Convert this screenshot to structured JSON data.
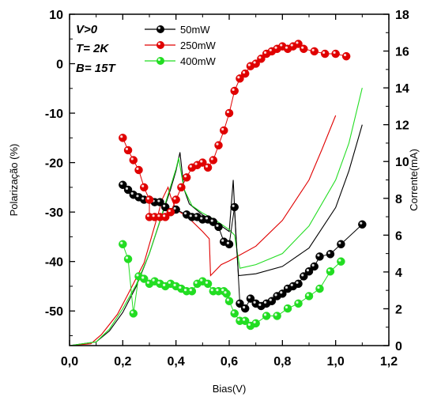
{
  "chart_data": {
    "type": "scatter",
    "xlabel": "Bias(V)",
    "ylabel_left": "Polarização (%)",
    "ylabel_right": "Corrente(mA)",
    "xlim": [
      0.0,
      1.2
    ],
    "ylim_left": [
      -57,
      10
    ],
    "ylim_right": [
      0,
      18
    ],
    "x_ticks": [
      "0,0",
      "0,2",
      "0,4",
      "0,6",
      "0,8",
      "1,0",
      "1,2"
    ],
    "y_left_ticks": [
      "10",
      "0",
      "-10",
      "-20",
      "-30",
      "-40",
      "-50"
    ],
    "y_right_ticks": [
      "0",
      "2",
      "4",
      "6",
      "8",
      "10",
      "12",
      "14",
      "16",
      "18"
    ],
    "y_left_tick_values": [
      10,
      0,
      -10,
      -20,
      -30,
      -40,
      -50
    ],
    "y_right_tick_values": [
      0,
      2,
      4,
      6,
      8,
      10,
      12,
      14,
      16,
      18
    ],
    "x_tick_values": [
      0,
      0.2,
      0.4,
      0.6,
      0.8,
      1.0,
      1.2
    ],
    "annotations": [
      "V>0",
      "T= 2K",
      "B= 15T"
    ],
    "legend_position": "top-center",
    "grid": false,
    "series": [
      {
        "name": "50mW",
        "color": "#000000",
        "polarization": [
          [
            0.2,
            -24.5
          ],
          [
            0.22,
            -25.5
          ],
          [
            0.24,
            -26.5
          ],
          [
            0.26,
            -27.0
          ],
          [
            0.28,
            -27.5
          ],
          [
            0.3,
            -27.5
          ],
          [
            0.32,
            -28.0
          ],
          [
            0.34,
            -28.0
          ],
          [
            0.36,
            -29.0
          ],
          [
            0.38,
            -30.0
          ],
          [
            0.4,
            -29.5
          ],
          [
            0.44,
            -30.5
          ],
          [
            0.46,
            -31.0
          ],
          [
            0.48,
            -31.0
          ],
          [
            0.5,
            -31.5
          ],
          [
            0.52,
            -31.5
          ],
          [
            0.54,
            -32.0
          ],
          [
            0.56,
            -33.0
          ],
          [
            0.58,
            -36.0
          ],
          [
            0.6,
            -36.5
          ],
          [
            0.62,
            -29.0
          ],
          [
            0.64,
            -48.5
          ],
          [
            0.66,
            -49.5
          ],
          [
            0.68,
            -47.5
          ],
          [
            0.7,
            -48.5
          ],
          [
            0.72,
            -49.0
          ],
          [
            0.74,
            -48.5
          ],
          [
            0.76,
            -48.0
          ],
          [
            0.78,
            -47.0
          ],
          [
            0.8,
            -46.5
          ],
          [
            0.82,
            -45.5
          ],
          [
            0.84,
            -45.0
          ],
          [
            0.86,
            -44.5
          ],
          [
            0.88,
            -43.0
          ],
          [
            0.9,
            -42.0
          ],
          [
            0.92,
            -41.0
          ],
          [
            0.94,
            -39.0
          ],
          [
            0.98,
            -38.5
          ],
          [
            1.02,
            -36.5
          ],
          [
            1.1,
            -32.5
          ]
        ],
        "current": [
          [
            0.0,
            0.0
          ],
          [
            0.1,
            0.2
          ],
          [
            0.15,
            0.8
          ],
          [
            0.2,
            1.8
          ],
          [
            0.25,
            3.2
          ],
          [
            0.3,
            5.0
          ],
          [
            0.35,
            7.2
          ],
          [
            0.38,
            8.5
          ],
          [
            0.4,
            9.5
          ],
          [
            0.415,
            10.5
          ],
          [
            0.43,
            8.5
          ],
          [
            0.45,
            7.7
          ],
          [
            0.5,
            7.1
          ],
          [
            0.55,
            6.7
          ],
          [
            0.58,
            6.4
          ],
          [
            0.6,
            6.2
          ],
          [
            0.615,
            9.0
          ],
          [
            0.625,
            6.0
          ],
          [
            0.635,
            3.8
          ],
          [
            0.7,
            3.9
          ],
          [
            0.8,
            4.3
          ],
          [
            0.9,
            5.3
          ],
          [
            1.0,
            7.5
          ],
          [
            1.05,
            9.5
          ],
          [
            1.1,
            12.0
          ]
        ]
      },
      {
        "name": "250mW",
        "color": "#e00000",
        "polarization": [
          [
            0.2,
            -15.0
          ],
          [
            0.22,
            -17.5
          ],
          [
            0.24,
            -19.5
          ],
          [
            0.26,
            -21.5
          ],
          [
            0.28,
            -25.0
          ],
          [
            0.3,
            -27.5
          ],
          [
            0.3,
            -31.0
          ],
          [
            0.32,
            -31.0
          ],
          [
            0.34,
            -31.0
          ],
          [
            0.36,
            -31.0
          ],
          [
            0.38,
            -30.0
          ],
          [
            0.4,
            -27.5
          ],
          [
            0.42,
            -25.0
          ],
          [
            0.44,
            -23.0
          ],
          [
            0.46,
            -21.0
          ],
          [
            0.48,
            -20.5
          ],
          [
            0.5,
            -20.0
          ],
          [
            0.52,
            -21.0
          ],
          [
            0.54,
            -19.5
          ],
          [
            0.56,
            -16.5
          ],
          [
            0.58,
            -13.5
          ],
          [
            0.6,
            -10.0
          ],
          [
            0.62,
            -5.5
          ],
          [
            0.64,
            -3.0
          ],
          [
            0.66,
            -2.0
          ],
          [
            0.68,
            -0.5
          ],
          [
            0.7,
            0.0
          ],
          [
            0.72,
            1.0
          ],
          [
            0.74,
            2.0
          ],
          [
            0.76,
            2.5
          ],
          [
            0.78,
            3.0
          ],
          [
            0.8,
            3.5
          ],
          [
            0.82,
            3.0
          ],
          [
            0.84,
            3.5
          ],
          [
            0.86,
            4.0
          ],
          [
            0.88,
            3.0
          ],
          [
            0.92,
            2.5
          ],
          [
            0.96,
            2.0
          ],
          [
            1.0,
            2.0
          ],
          [
            1.04,
            1.5
          ]
        ],
        "current": [
          [
            0.0,
            0.0
          ],
          [
            0.08,
            0.1
          ],
          [
            0.12,
            0.6
          ],
          [
            0.18,
            1.7
          ],
          [
            0.22,
            2.8
          ],
          [
            0.28,
            4.5
          ],
          [
            0.32,
            6.5
          ],
          [
            0.35,
            8.0
          ],
          [
            0.37,
            8.6
          ],
          [
            0.38,
            8.1
          ],
          [
            0.4,
            7.4
          ],
          [
            0.45,
            6.9
          ],
          [
            0.5,
            6.2
          ],
          [
            0.525,
            5.8
          ],
          [
            0.53,
            3.8
          ],
          [
            0.57,
            4.4
          ],
          [
            0.6,
            4.6
          ],
          [
            0.7,
            5.4
          ],
          [
            0.8,
            6.8
          ],
          [
            0.9,
            9.0
          ],
          [
            0.95,
            10.7
          ],
          [
            1.0,
            12.5
          ]
        ]
      },
      {
        "name": "400mW",
        "color": "#22dd22",
        "polarization": [
          [
            0.2,
            -36.5
          ],
          [
            0.22,
            -39.5
          ],
          [
            0.24,
            -50.5
          ],
          [
            0.26,
            -43.0
          ],
          [
            0.28,
            -43.5
          ],
          [
            0.3,
            -44.5
          ],
          [
            0.32,
            -44.0
          ],
          [
            0.34,
            -44.5
          ],
          [
            0.36,
            -45.0
          ],
          [
            0.38,
            -44.5
          ],
          [
            0.4,
            -45.0
          ],
          [
            0.42,
            -45.5
          ],
          [
            0.44,
            -46.0
          ],
          [
            0.46,
            -46.0
          ],
          [
            0.48,
            -44.5
          ],
          [
            0.5,
            -44.0
          ],
          [
            0.52,
            -44.5
          ],
          [
            0.54,
            -46.0
          ],
          [
            0.56,
            -46.0
          ],
          [
            0.58,
            -46.0
          ],
          [
            0.59,
            -46.5
          ],
          [
            0.6,
            -48.0
          ],
          [
            0.62,
            -50.5
          ],
          [
            0.64,
            -52.0
          ],
          [
            0.66,
            -52.0
          ],
          [
            0.68,
            -53.0
          ],
          [
            0.7,
            -52.5
          ],
          [
            0.74,
            -51.0
          ],
          [
            0.78,
            -51.0
          ],
          [
            0.82,
            -49.5
          ],
          [
            0.86,
            -48.5
          ],
          [
            0.9,
            -47.0
          ],
          [
            0.94,
            -45.5
          ],
          [
            0.98,
            -42.0
          ],
          [
            1.02,
            -40.0
          ]
        ],
        "current": [
          [
            0.0,
            0.0
          ],
          [
            0.1,
            0.2
          ],
          [
            0.15,
            0.9
          ],
          [
            0.2,
            2.0
          ],
          [
            0.25,
            3.3
          ],
          [
            0.3,
            5.0
          ],
          [
            0.34,
            6.8
          ],
          [
            0.37,
            8.2
          ],
          [
            0.4,
            9.6
          ],
          [
            0.41,
            10.2
          ],
          [
            0.43,
            8.5
          ],
          [
            0.46,
            7.6
          ],
          [
            0.5,
            7.2
          ],
          [
            0.55,
            6.8
          ],
          [
            0.6,
            6.3
          ],
          [
            0.62,
            6.0
          ],
          [
            0.64,
            4.2
          ],
          [
            0.7,
            4.4
          ],
          [
            0.8,
            5.0
          ],
          [
            0.9,
            6.5
          ],
          [
            1.0,
            9.0
          ],
          [
            1.05,
            11.0
          ],
          [
            1.1,
            14.0
          ]
        ]
      }
    ]
  }
}
